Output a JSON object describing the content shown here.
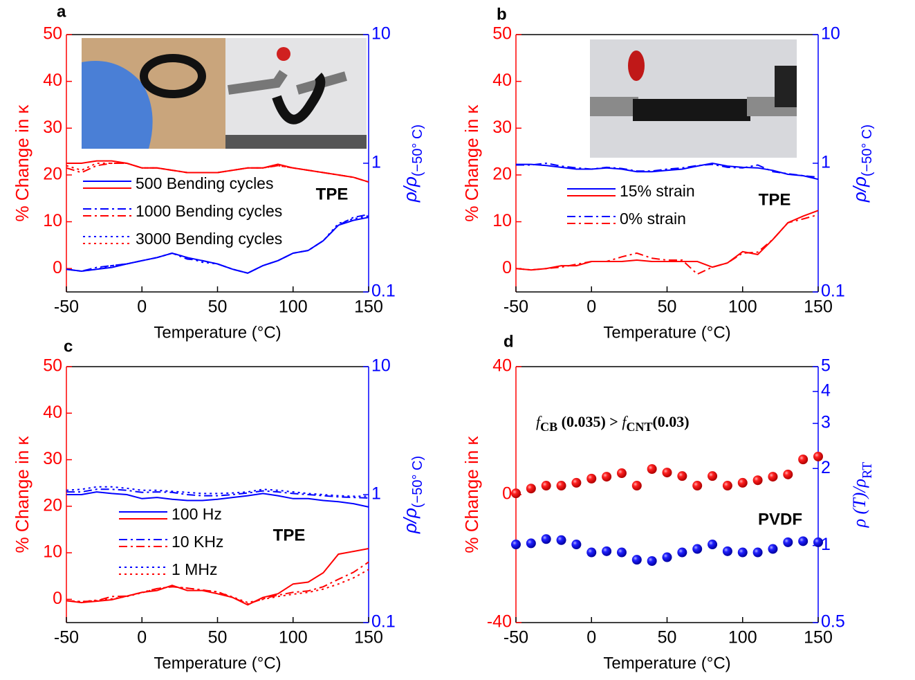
{
  "chart_data": [
    {
      "type": "line",
      "panel": "a",
      "text": "TPE",
      "xlabel": "Temperature (°C)",
      "ylabel": "% Change in κ",
      "y2label": "ρ/ρ",
      "y2label_sub": "(−50° C)",
      "color": "#ff0000",
      "y2color": "#0000ff",
      "y2log": true,
      "xlim": [
        -50,
        150
      ],
      "xticks": [
        -50,
        0,
        50,
        100,
        150
      ],
      "ylim": [
        -5,
        50
      ],
      "yticks": [
        0,
        10,
        20,
        30,
        40,
        50
      ],
      "y2lim": [
        0.1,
        10
      ],
      "y2ticks": [
        0.1,
        1,
        10
      ],
      "x": [
        -50,
        -40,
        -30,
        -20,
        -10,
        0,
        10,
        20,
        30,
        40,
        50,
        60,
        70,
        80,
        90,
        100,
        110,
        120,
        130,
        140,
        150
      ],
      "series": [
        {
          "name": "500 Bending cycles",
          "style": "solid",
          "values": [
            22.5,
            22.5,
            23,
            23,
            22.5,
            21.5,
            21.5,
            21,
            20.5,
            20.5,
            20.5,
            21,
            21.5,
            21.5,
            22.3,
            21.5,
            21,
            20.5,
            20,
            19.5,
            18.5
          ],
          "y2_values": [
            0.15,
            0.145,
            0.15,
            0.155,
            0.165,
            0.175,
            0.185,
            0.2,
            0.185,
            0.175,
            0.165,
            0.15,
            0.14,
            0.16,
            0.175,
            0.2,
            0.21,
            0.25,
            0.33,
            0.36,
            0.38
          ]
        },
        {
          "name": "1000 Bending cycles",
          "style": "dashdot",
          "values": [
            21.5,
            20.5,
            22,
            22.5,
            22.5,
            21.5,
            21.5,
            21,
            20.5,
            20.5,
            20.5,
            21,
            21.5,
            21.5,
            22,
            21.5,
            21,
            20.5,
            20,
            19.5,
            18.5
          ],
          "y2_values": [
            0.15,
            0.145,
            0.155,
            0.16,
            0.165,
            0.175,
            0.185,
            0.2,
            0.18,
            0.175,
            0.165,
            0.15,
            0.14,
            0.16,
            0.175,
            0.2,
            0.21,
            0.25,
            0.33,
            0.38,
            0.4
          ]
        },
        {
          "name": "3000 Bending cycles",
          "style": "dotted",
          "values": [
            22,
            21,
            22.5,
            22.5,
            22.5,
            21.5,
            21.5,
            21,
            20.5,
            20.5,
            20.5,
            21,
            21.5,
            21.5,
            22,
            21.5,
            21,
            20.5,
            20,
            19.5,
            18.5
          ],
          "y2_values": [
            0.15,
            0.145,
            0.15,
            0.16,
            0.165,
            0.175,
            0.185,
            0.2,
            0.185,
            0.17,
            0.165,
            0.15,
            0.14,
            0.16,
            0.175,
            0.2,
            0.21,
            0.25,
            0.34,
            0.37,
            0.39
          ]
        }
      ]
    },
    {
      "type": "line",
      "panel": "b",
      "text": "TPE",
      "xlabel": "Temperature (°C)",
      "ylabel": "% Change in κ",
      "y2label": "ρ/ρ",
      "y2label_sub": "(−50° C)",
      "color": "#ff0000",
      "y2color": "#0000ff",
      "y2log": true,
      "xlim": [
        -50,
        150
      ],
      "xticks": [
        -50,
        0,
        50,
        100,
        150
      ],
      "ylim": [
        -5,
        50
      ],
      "yticks": [
        0,
        10,
        20,
        30,
        40,
        50
      ],
      "y2lim": [
        0.1,
        10
      ],
      "y2ticks": [
        0.1,
        1,
        10
      ],
      "x": [
        -50,
        -40,
        -30,
        -20,
        -10,
        0,
        10,
        20,
        30,
        40,
        50,
        60,
        70,
        80,
        90,
        100,
        110,
        120,
        130,
        140,
        150
      ],
      "series": [
        {
          "name": "15% strain",
          "style": "solid",
          "values": [
            0,
            -0.3,
            0,
            0.6,
            0.6,
            1.5,
            1.5,
            1.5,
            1.8,
            1.5,
            1.5,
            1.5,
            1.5,
            0.3,
            1.2,
            3.6,
            3,
            6.2,
            9.8,
            11.2,
            12.4
          ],
          "y2_values": [
            0.98,
            0.98,
            0.96,
            0.93,
            0.9,
            0.9,
            0.92,
            0.9,
            0.86,
            0.86,
            0.88,
            0.9,
            0.95,
            1,
            0.95,
            0.93,
            0.92,
            0.88,
            0.82,
            0.8,
            0.75
          ]
        },
        {
          "name": "0% strain",
          "style": "dashdot",
          "values": [
            0,
            -0.3,
            0,
            0.3,
            0.9,
            1.5,
            1.5,
            2.5,
            3.3,
            2.2,
            1.8,
            1.8,
            -1.2,
            0.3,
            1.2,
            3.3,
            3.5,
            6.2,
            9.8,
            10.6,
            11.5
          ],
          "y2_values": [
            0.97,
            0.97,
            1,
            0.95,
            0.92,
            0.9,
            0.93,
            0.91,
            0.87,
            0.87,
            0.9,
            0.92,
            0.96,
            0.98,
            0.93,
            0.92,
            0.97,
            0.86,
            0.83,
            0.8,
            0.78
          ]
        }
      ]
    },
    {
      "type": "line",
      "panel": "c",
      "text": "TPE",
      "xlabel": "Temperature (°C)",
      "ylabel": "% Change in κ",
      "y2label": "ρ/ρ",
      "y2label_sub": "(−50° C)",
      "color": "#ff0000",
      "y2color": "#0000ff",
      "y2log": true,
      "xlim": [
        -50,
        150
      ],
      "xticks": [
        -50,
        0,
        50,
        100,
        150
      ],
      "ylim": [
        -5,
        50
      ],
      "yticks": [
        0,
        10,
        20,
        30,
        40,
        50
      ],
      "y2lim": [
        0.1,
        10
      ],
      "y2ticks": [
        0.1,
        1,
        10
      ],
      "x": [
        -50,
        -40,
        -30,
        -20,
        -10,
        0,
        10,
        20,
        30,
        40,
        50,
        60,
        70,
        80,
        90,
        100,
        110,
        120,
        130,
        140,
        150
      ],
      "series": [
        {
          "name": "100 Hz",
          "style": "solid",
          "values": [
            -0.3,
            -0.7,
            -0.4,
            -0.1,
            0.7,
            1.5,
            1.9,
            3,
            1.9,
            1.9,
            1.2,
            0.4,
            -1.2,
            0.4,
            1.2,
            3.3,
            3.7,
            5.7,
            9.7,
            10.3,
            10.9
          ],
          "y2_values": [
            1,
            1,
            1.05,
            1.02,
            1,
            0.93,
            0.95,
            0.92,
            0.9,
            0.9,
            0.92,
            0.95,
            0.98,
            1.02,
            0.98,
            0.93,
            0.93,
            0.9,
            0.88,
            0.85,
            0.8
          ]
        },
        {
          "name": "10 KHz",
          "style": "dashdot",
          "values": [
            -0.3,
            -0.5,
            -0.3,
            0.6,
            0.7,
            1.5,
            2.3,
            2.7,
            2.4,
            2,
            1.6,
            0.4,
            -1,
            0.1,
            0.9,
            1.5,
            1.8,
            2.7,
            4.3,
            5.8,
            8
          ],
          "y2_values": [
            1.05,
            1.05,
            1.1,
            1.1,
            1.08,
            1.04,
            1.05,
            1.04,
            1,
            0.98,
            0.98,
            1,
            1.03,
            1.07,
            1.05,
            1.02,
            1,
            0.98,
            0.96,
            0.95,
            0.94
          ]
        },
        {
          "name": "1 MHz",
          "style": "dotted",
          "values": [
            -0.3,
            -0.5,
            -0.2,
            0.1,
            0.6,
            1.4,
            2.3,
            2.7,
            2.4,
            2,
            1.6,
            0.5,
            -0.7,
            0,
            0.6,
            1.1,
            1.5,
            2.2,
            3.3,
            4.6,
            6.4
          ],
          "y2_values": [
            1.08,
            1.1,
            1.15,
            1.15,
            1.12,
            1.08,
            1.08,
            1.06,
            1.04,
            1.02,
            1.02,
            1.03,
            1.05,
            1.1,
            1.08,
            1.05,
            1.02,
            1,
            0.98,
            0.97,
            0.97
          ]
        }
      ]
    },
    {
      "type": "scatter",
      "panel": "d",
      "text": "PVDF",
      "xlabel": "Temperature (°C)",
      "ylabel": "% Change in κ",
      "y2label": "ρ (T)/ρ",
      "y2label_sub": "RT",
      "annotation_parts": [
        "f",
        "CB",
        " (0.035) > ",
        "f",
        "CNT",
        "(0.03)"
      ],
      "color": "#ff0000",
      "y2color": "#0000ff",
      "y2log": true,
      "xlim": [
        -50,
        150
      ],
      "xticks": [
        -50,
        0,
        50,
        100,
        150
      ],
      "ylim": [
        -40,
        40
      ],
      "yticks": [
        -40,
        0,
        40
      ],
      "y2lim": [
        0.5,
        5
      ],
      "y2ticks": [
        0.5,
        1,
        2,
        3,
        4,
        5
      ],
      "x": [
        -50,
        -40,
        -30,
        -20,
        -10,
        0,
        10,
        20,
        30,
        40,
        50,
        60,
        70,
        80,
        90,
        100,
        110,
        120,
        130,
        140,
        150
      ],
      "values": [
        0.4,
        1.9,
        2.8,
        2.8,
        3.7,
        5,
        5.6,
        6.7,
        2.8,
        8,
        6.9,
        5.8,
        2.8,
        5.8,
        2.8,
        3.7,
        4.5,
        5.6,
        6.3,
        11,
        11.9
      ],
      "y2_values": [
        1.01,
        1.02,
        1.06,
        1.05,
        1.01,
        0.94,
        0.95,
        0.94,
        0.88,
        0.87,
        0.9,
        0.94,
        0.97,
        1.01,
        0.95,
        0.94,
        0.94,
        0.97,
        1.03,
        1.04,
        1.03
      ]
    }
  ]
}
